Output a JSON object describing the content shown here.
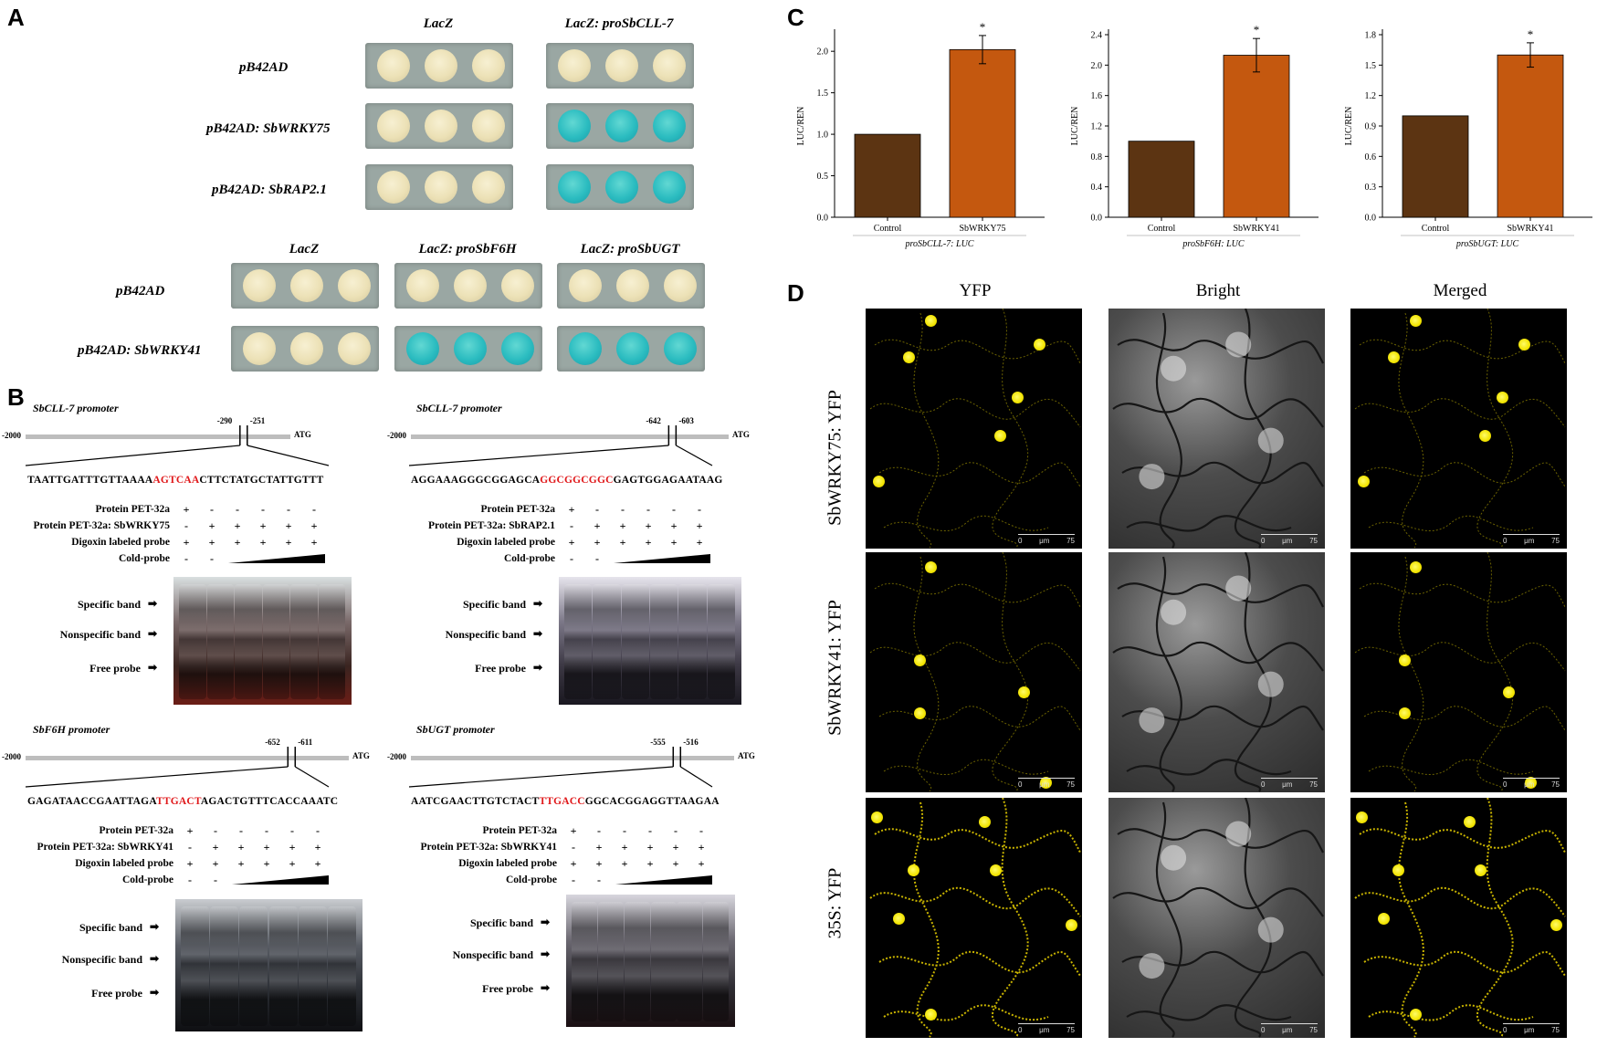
{
  "panels": {
    "a": "A",
    "b": "B",
    "c": "C",
    "d": "D"
  },
  "panelA": {
    "top": {
      "cols": [
        "LacZ",
        "LacZ: proSbCLL-7"
      ],
      "rows": [
        "pB42AD",
        "pB42AD: SbWRKY75",
        "pB42AD: SbRAP2.1"
      ],
      "blue": [
        [
          false,
          false
        ],
        [
          false,
          true
        ],
        [
          false,
          true
        ]
      ]
    },
    "bottom": {
      "cols": [
        "LacZ",
        "LacZ: proSbF6H",
        "LacZ: proSbUGT"
      ],
      "rows": [
        "pB42AD",
        "pB42AD: SbWRKY41"
      ],
      "blue": [
        [
          false,
          false,
          false
        ],
        [
          false,
          true,
          true
        ]
      ]
    }
  },
  "panelB": [
    {
      "title": "SbCLL-7 promoter",
      "start": "-2000",
      "pos1": "-290",
      "pos2": "-251",
      "atg": "ATG",
      "seq_pre": "TAATTGATTTGTTAAAA",
      "seq_hl": "AGTCAA",
      "seq_post": "CTTCTATGCTATTGTTT",
      "rows": [
        "Protein PET-32a",
        "Protein PET-32a: SbWRKY75",
        "Digoxin labeled probe",
        "Cold-probe"
      ],
      "marks": [
        [
          "+",
          "-",
          "-",
          "-",
          "-",
          "-"
        ],
        [
          "-",
          "+",
          "+",
          "+",
          "+",
          "+"
        ],
        [
          "+",
          "+",
          "+",
          "+",
          "+",
          "+"
        ],
        [
          "-",
          "-",
          "",
          "",
          "",
          ""
        ]
      ],
      "bands": [
        "Specific band",
        "Nonspecific band",
        "Free probe"
      ]
    },
    {
      "title": "SbCLL-7 promoter",
      "start": "-2000",
      "pos1": "-642",
      "pos2": "-603",
      "atg": "ATG",
      "seq_pre": "AGGAAAGGGCGGAGCA",
      "seq_hl": "GGCGGCGGC",
      "seq_post": "GAGTGGAGAATAAG",
      "rows": [
        "Protein PET-32a",
        "Protein PET-32a: SbRAP2.1",
        "Digoxin labeled probe",
        "Cold-probe"
      ],
      "marks": [
        [
          "+",
          "-",
          "-",
          "-",
          "-",
          "-"
        ],
        [
          "-",
          "+",
          "+",
          "+",
          "+",
          "+"
        ],
        [
          "+",
          "+",
          "+",
          "+",
          "+",
          "+"
        ],
        [
          "-",
          "-",
          "",
          "",
          "",
          ""
        ]
      ],
      "bands": [
        "Specific band",
        "Nonspecific band",
        "Free probe"
      ]
    },
    {
      "title": "SbF6H promoter",
      "start": "-2000",
      "pos1": "-652",
      "pos2": "-611",
      "atg": "ATG",
      "seq_pre": "GAGATAACCGAATTAGA",
      "seq_hl": "TTGACT",
      "seq_post": "AGACTGTTTCACCAAATC",
      "rows": [
        "Protein PET-32a",
        "Protein PET-32a: SbWRKY41",
        "Digoxin labeled probe",
        "Cold-probe"
      ],
      "marks": [
        [
          "+",
          "-",
          "-",
          "-",
          "-",
          "-"
        ],
        [
          "-",
          "+",
          "+",
          "+",
          "+",
          "+"
        ],
        [
          "+",
          "+",
          "+",
          "+",
          "+",
          "+"
        ],
        [
          "-",
          "-",
          "",
          "",
          "",
          ""
        ]
      ],
      "bands": [
        "Specific band",
        "Nonspecific band",
        "Free probe"
      ]
    },
    {
      "title": "SbUGT promoter",
      "start": "-2000",
      "pos1": "-555",
      "pos2": "-516",
      "atg": "ATG",
      "seq_pre": "AATCGAACTTGTCTACT",
      "seq_hl": "TTGACC",
      "seq_post": "GGCACGGAGGTTAAGAA",
      "rows": [
        "Protein PET-32a",
        "Protein PET-32a: SbWRKY41",
        "Digoxin labeled probe",
        "Cold-probe"
      ],
      "marks": [
        [
          "+",
          "-",
          "-",
          "-",
          "-",
          "-"
        ],
        [
          "-",
          "+",
          "+",
          "+",
          "+",
          "+"
        ],
        [
          "+",
          "+",
          "+",
          "+",
          "+",
          "+"
        ],
        [
          "-",
          "-",
          "",
          "",
          "",
          ""
        ]
      ],
      "bands": [
        "Specific band",
        "Nonspecific band",
        "Free probe"
      ]
    }
  ],
  "chart_data": [
    {
      "type": "bar",
      "categories": [
        "Control",
        "SbWRKY75"
      ],
      "values": [
        1.0,
        2.02
      ],
      "errors": [
        0,
        0.17
      ],
      "significance": [
        "",
        "*"
      ],
      "ylabel": "LUC/REN",
      "xlabel": "proSbCLL-7: LUC",
      "ylim": [
        0,
        2.2
      ],
      "yticks": [
        "0.0",
        "0.5",
        "1.0",
        "1.5",
        "2.0"
      ],
      "yvals": [
        0,
        0.5,
        1.0,
        1.5,
        2.0
      ],
      "colors": [
        "#5c3412",
        "#c4580f"
      ]
    },
    {
      "type": "bar",
      "categories": [
        "Control",
        "SbWRKY41"
      ],
      "values": [
        1.0,
        2.13
      ],
      "errors": [
        0,
        0.22
      ],
      "significance": [
        "",
        "*"
      ],
      "ylabel": "LUC/REN",
      "xlabel": "proSbF6H: LUC",
      "ylim": [
        0,
        2.4
      ],
      "yticks": [
        "0.0",
        "0.4",
        "0.8",
        "1.2",
        "1.6",
        "2.0",
        "2.4"
      ],
      "yvals": [
        0,
        0.4,
        0.8,
        1.2,
        1.6,
        2.0,
        2.4
      ],
      "colors": [
        "#5c3412",
        "#c4580f"
      ]
    },
    {
      "type": "bar",
      "categories": [
        "Control",
        "SbWRKY41"
      ],
      "values": [
        1.0,
        1.6
      ],
      "errors": [
        0,
        0.12
      ],
      "significance": [
        "",
        "*"
      ],
      "ylabel": "LUC/REN",
      "xlabel": "proSbUGT: LUC",
      "ylim": [
        0,
        1.8
      ],
      "yticks": [
        "0.0",
        "0.3",
        "0.6",
        "0.9",
        "1.2",
        "1.5",
        "1.8"
      ],
      "yvals": [
        0,
        0.3,
        0.6,
        0.9,
        1.2,
        1.5,
        1.8
      ],
      "colors": [
        "#5c3412",
        "#c4580f"
      ]
    }
  ],
  "panelD": {
    "cols": [
      "YFP",
      "Bright",
      "Merged"
    ],
    "rows": [
      "SbWRKY75: YFP",
      "SbWRKY41: YFP",
      "35S: YFP"
    ],
    "scale": {
      "zero": "0",
      "unit": "μm",
      "max": "75"
    }
  }
}
